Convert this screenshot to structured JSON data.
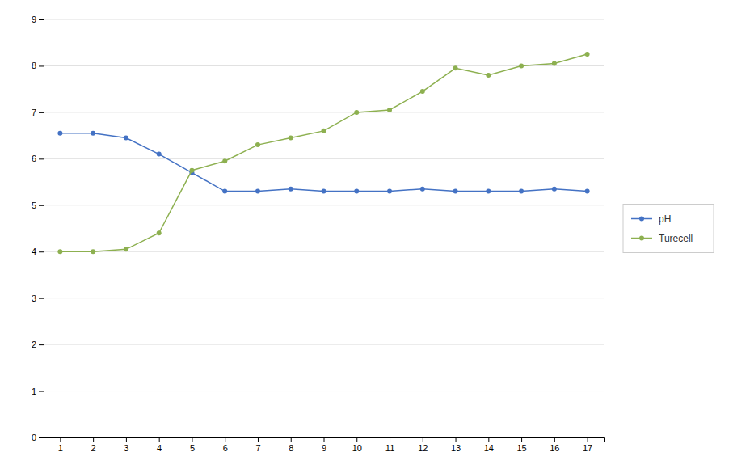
{
  "chart_data": {
    "type": "line",
    "x": [
      1,
      2,
      3,
      4,
      5,
      6,
      7,
      8,
      9,
      10,
      11,
      12,
      13,
      14,
      15,
      16,
      17
    ],
    "series": [
      {
        "name": "pH",
        "color": "#4472C4",
        "values": [
          6.55,
          6.55,
          6.45,
          6.1,
          5.7,
          5.3,
          5.3,
          5.35,
          5.3,
          5.3,
          5.3,
          5.35,
          5.3,
          5.3,
          5.3,
          5.35,
          5.3
        ]
      },
      {
        "name": "Turecell",
        "color": "#8DB050",
        "values": [
          4.0,
          4.0,
          4.05,
          4.4,
          5.75,
          5.95,
          6.3,
          6.45,
          6.6,
          7.0,
          7.05,
          7.45,
          7.95,
          7.8,
          8.0,
          8.05,
          8.25
        ]
      }
    ],
    "xlim": [
      0.5,
      17.5
    ],
    "xticks": [
      1,
      2,
      3,
      4,
      5,
      6,
      7,
      8,
      9,
      10,
      11,
      12,
      13,
      14,
      15,
      16,
      17
    ],
    "ylim": [
      0,
      9
    ],
    "yticks": [
      0,
      1,
      2,
      3,
      4,
      5,
      6,
      7,
      8,
      9
    ],
    "grid": "y",
    "legend": "right",
    "marker": "circle"
  }
}
